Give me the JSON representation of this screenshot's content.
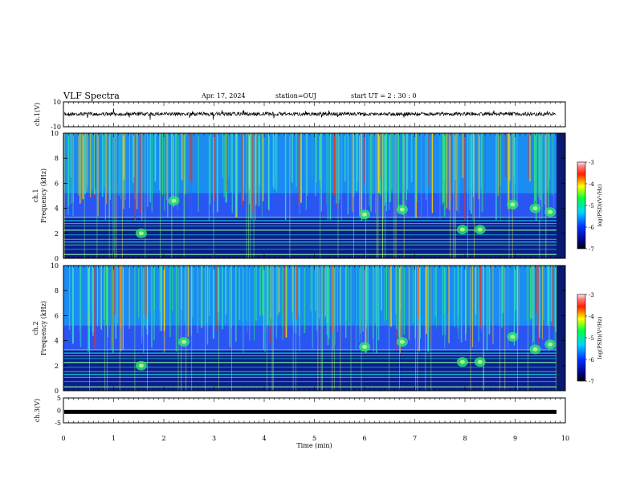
{
  "header": {
    "title": "VLF Spectra",
    "date": "Apr. 17, 2024",
    "station": "station=OUJ",
    "start_ut": "start  UT  =   2  : 30 : 0"
  },
  "colors": {
    "trace": "#000000",
    "background_dark": "#0a1f8a",
    "background_mid": "#1f5fff",
    "band": "#18d2e6",
    "burst": "#2ee870",
    "burst_hot": "#ffd400",
    "peak": "#ff2a00"
  },
  "chart_data": [
    {
      "panel": "ch1-waveform",
      "type": "line",
      "ylabel": "ch.1(V)",
      "xlim": [
        0,
        10
      ],
      "ylim": [
        -10,
        10
      ],
      "y_ticks": [
        "10",
        "-10"
      ],
      "level": 0.3
    },
    {
      "panel": "ch1-spectrogram",
      "type": "heatmap",
      "ylabel": "ch.1\nFrequency  (kHz)",
      "xlim": [
        0,
        10
      ],
      "ylim": [
        0,
        10
      ],
      "y_ticks": [
        "0",
        "2",
        "4",
        "6",
        "8",
        "10"
      ],
      "colorbar": {
        "label": "log(PSD)(V²/Hz)",
        "range": [
          -7,
          -3
        ],
        "ticks": [
          "-3",
          "-4",
          "-5",
          "-6",
          "-7"
        ]
      },
      "emission_blobs": [
        {
          "t": 1.55,
          "f": 2.0
        },
        {
          "t": 2.2,
          "f": 4.6
        },
        {
          "t": 6.0,
          "f": 3.5
        },
        {
          "t": 6.75,
          "f": 3.9
        },
        {
          "t": 7.95,
          "f": 2.3
        },
        {
          "t": 8.3,
          "f": 2.3
        },
        {
          "t": 8.95,
          "f": 4.3
        },
        {
          "t": 9.4,
          "f": 4.0
        },
        {
          "t": 9.7,
          "f": 3.7
        }
      ]
    },
    {
      "panel": "ch2-spectrogram",
      "type": "heatmap",
      "ylabel": "ch.2\nFrequency  (kHz)",
      "xlim": [
        0,
        10
      ],
      "ylim": [
        0,
        10
      ],
      "y_ticks": [
        "0",
        "2",
        "4",
        "6",
        "8",
        "10"
      ],
      "colorbar": {
        "label": "log(PSD)(V²/Hz)",
        "range": [
          -7,
          -3
        ],
        "ticks": [
          "-3",
          "-4",
          "-5",
          "-6",
          "-7"
        ]
      },
      "emission_blobs": [
        {
          "t": 1.55,
          "f": 2.0
        },
        {
          "t": 2.4,
          "f": 3.9
        },
        {
          "t": 6.0,
          "f": 3.5
        },
        {
          "t": 6.75,
          "f": 3.9
        },
        {
          "t": 7.95,
          "f": 2.3
        },
        {
          "t": 8.3,
          "f": 2.3
        },
        {
          "t": 8.95,
          "f": 4.3
        },
        {
          "t": 9.4,
          "f": 3.3
        },
        {
          "t": 9.7,
          "f": 3.7
        }
      ]
    },
    {
      "panel": "ch3-waveform",
      "type": "line",
      "ylabel": "ch.3(V)",
      "xlim": [
        0,
        10
      ],
      "ylim": [
        -5,
        5
      ],
      "y_ticks": [
        "5",
        "0",
        "-5"
      ],
      "level": -0.6
    }
  ],
  "x_axis": {
    "label": "Time  (min)",
    "ticks": [
      "0",
      "1",
      "2",
      "3",
      "4",
      "5",
      "6",
      "7",
      "8",
      "9",
      "10"
    ]
  }
}
